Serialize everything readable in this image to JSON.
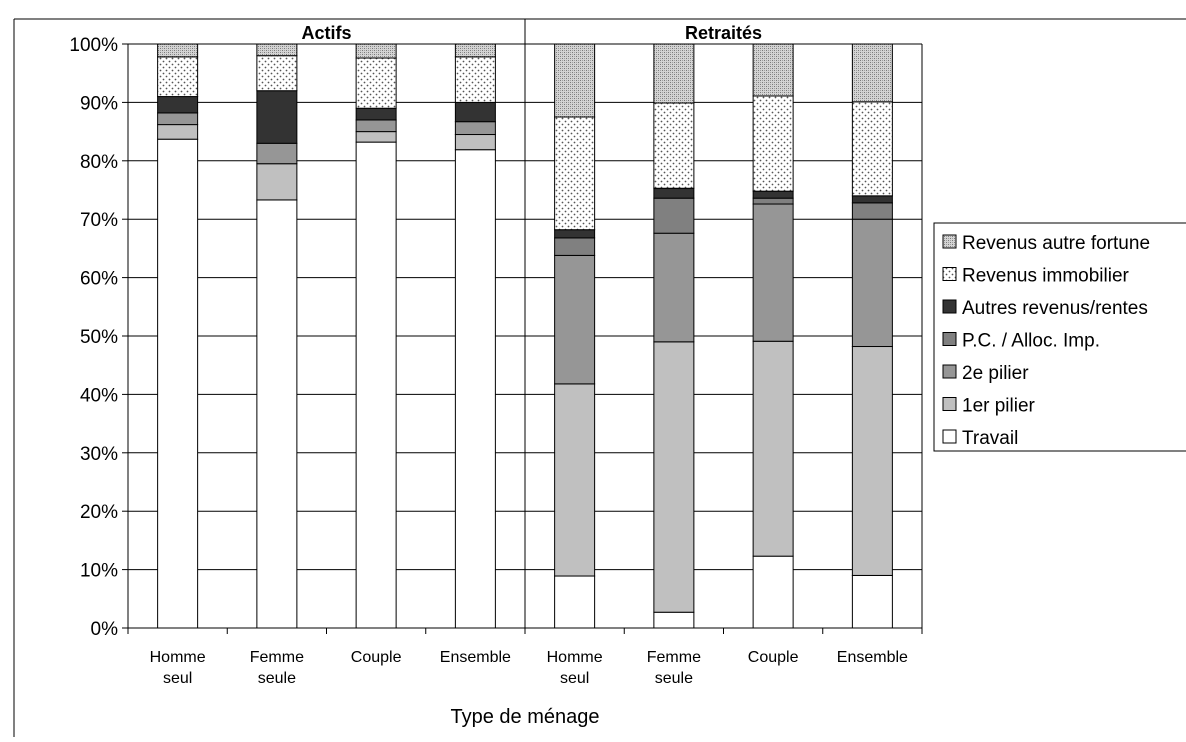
{
  "chart_data": {
    "type": "bar",
    "stacked": true,
    "normalized_percent": true,
    "xlabel": "Type de ménage",
    "ylabel": "",
    "ylim": [
      0,
      100
    ],
    "yticks": [
      "0%",
      "10%",
      "20%",
      "30%",
      "40%",
      "50%",
      "60%",
      "70%",
      "80%",
      "90%",
      "100%"
    ],
    "grid": true,
    "legend_position": "right",
    "groups": [
      {
        "label": "Actifs",
        "categories": [
          [
            "Homme",
            "seul"
          ],
          [
            "Femme",
            "seule"
          ],
          [
            "Couple"
          ],
          [
            "Ensemble"
          ]
        ]
      },
      {
        "label": "Retraités",
        "categories": [
          [
            "Homme",
            "seul"
          ],
          [
            "Femme",
            "seule"
          ],
          [
            "Couple"
          ],
          [
            "Ensemble"
          ]
        ]
      }
    ],
    "series": [
      {
        "name": "Travail",
        "fill": "#ffffff",
        "pattern": "none",
        "values": [
          83.7,
          73.3,
          83.2,
          81.9,
          8.9,
          2.7,
          12.3,
          9.0
        ]
      },
      {
        "name": "1er pilier",
        "fill": "#c0c0c0",
        "pattern": "none",
        "values": [
          2.5,
          6.2,
          1.8,
          2.6,
          32.9,
          46.3,
          36.8,
          39.2
        ]
      },
      {
        "name": "2e pilier",
        "fill": "#969696",
        "pattern": "none",
        "values": [
          2.0,
          3.5,
          2.0,
          2.2,
          22.0,
          18.6,
          23.5,
          21.8
        ]
      },
      {
        "name": "P.C. / Alloc. Imp.",
        "fill": "#808080",
        "pattern": "none",
        "values": [
          0.0,
          0.0,
          0.0,
          0.0,
          3.0,
          6.0,
          1.0,
          2.8
        ]
      },
      {
        "name": "Autres revenus/rentes",
        "fill": "#333333",
        "pattern": "none",
        "values": [
          2.8,
          9.0,
          2.0,
          3.3,
          1.4,
          1.7,
          1.2,
          1.2
        ]
      },
      {
        "name": "Revenus immobilier",
        "fill": "#ffffff",
        "pattern": "dots",
        "values": [
          6.8,
          6.0,
          8.6,
          7.8,
          19.3,
          14.6,
          16.3,
          16.1
        ]
      },
      {
        "name": "Revenus autre fortune",
        "fill": "#c0c0c0",
        "pattern": "crosshatch",
        "values": [
          2.2,
          2.0,
          2.4,
          2.2,
          12.5,
          10.1,
          8.9,
          9.9
        ]
      }
    ],
    "legend_order": [
      "Revenus autre fortune",
      "Revenus immobilier",
      "Autres revenus/rentes",
      "P.C. / Alloc. Imp.",
      "2e pilier",
      "1er pilier",
      "Travail"
    ]
  }
}
